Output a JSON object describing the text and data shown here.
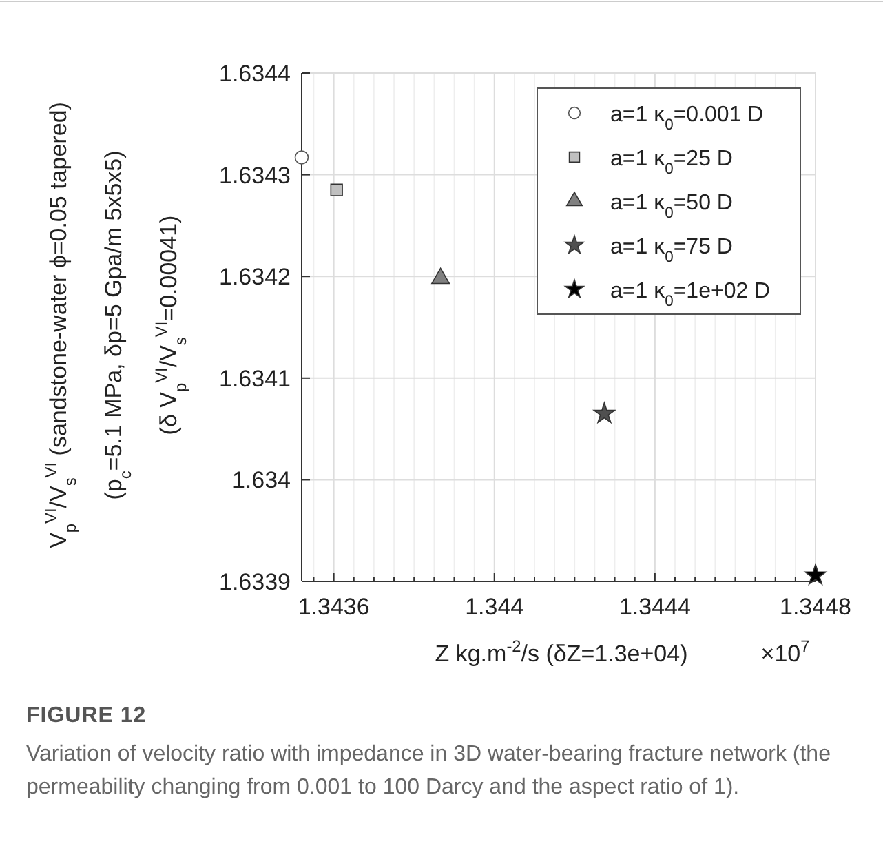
{
  "chart_data": {
    "type": "scatter",
    "xlabel": "Z kg.m$^{-2}$/s (δZ=1.3e+04)",
    "ylabel": "V$_{p}$$^{VI}$/V$_{s}$$^{VI}$ (sandstone-water ϕ=0.05 tapered)\n(p$_{c}$=5.1 MPa, δp=5 Gpa/m 5x5x5)\n(δ V$_{p}$$^{VI}$/V$_{s}$$^{VI}$=0.00041)",
    "xlim": [
      1.34352,
      1.3448
    ],
    "xticks": [
      1.3436,
      1.344,
      1.3444,
      1.3448
    ],
    "ylim": [
      1.6339,
      1.6344
    ],
    "yticks": [
      1.6339,
      {
        "value": 1.634,
        "label": "1.634"
      },
      1.6341,
      1.6342,
      1.6343,
      1.6344
    ],
    "grid": true,
    "legend": "top right",
    "series": [
      {
        "name": "a=1 κ$_{0}$=0.001 D",
        "color": "#ffffff",
        "marker": "circle",
        "x": [
          1.34352
        ],
        "values": [
          1.634317
        ]
      },
      {
        "name": "a=1 κ$_{0}$=25 D",
        "color": "#c0c0c0",
        "marker": "square",
        "x": [
          1.343607
        ],
        "values": [
          1.634285
        ]
      },
      {
        "name": "a=1 κ$_{0}$=50 D",
        "color": "#808080",
        "marker": "triangle",
        "x": [
          1.343866
        ],
        "values": [
          1.634198
        ]
      },
      {
        "name": "a=1 κ$_{0}$=75 D",
        "color": "#505050",
        "marker": "star",
        "x": [
          1.344274
        ],
        "values": [
          1.634065
        ]
      },
      {
        "name": "a=1 κ$_{0}$=1e+02 D",
        "color": "#000000",
        "marker": "star",
        "x": [
          1.3448
        ],
        "values": [
          1.633906
        ]
      }
    ],
    "annotations": [
      "×10$^{7}$",
      "FIGURE 12",
      "Variation of velocity ratio with impedance in 3D water-bearing fracture network (the permeability changing from 0.001 to 100 Darcy and the aspect ratio of 1)."
    ]
  }
}
